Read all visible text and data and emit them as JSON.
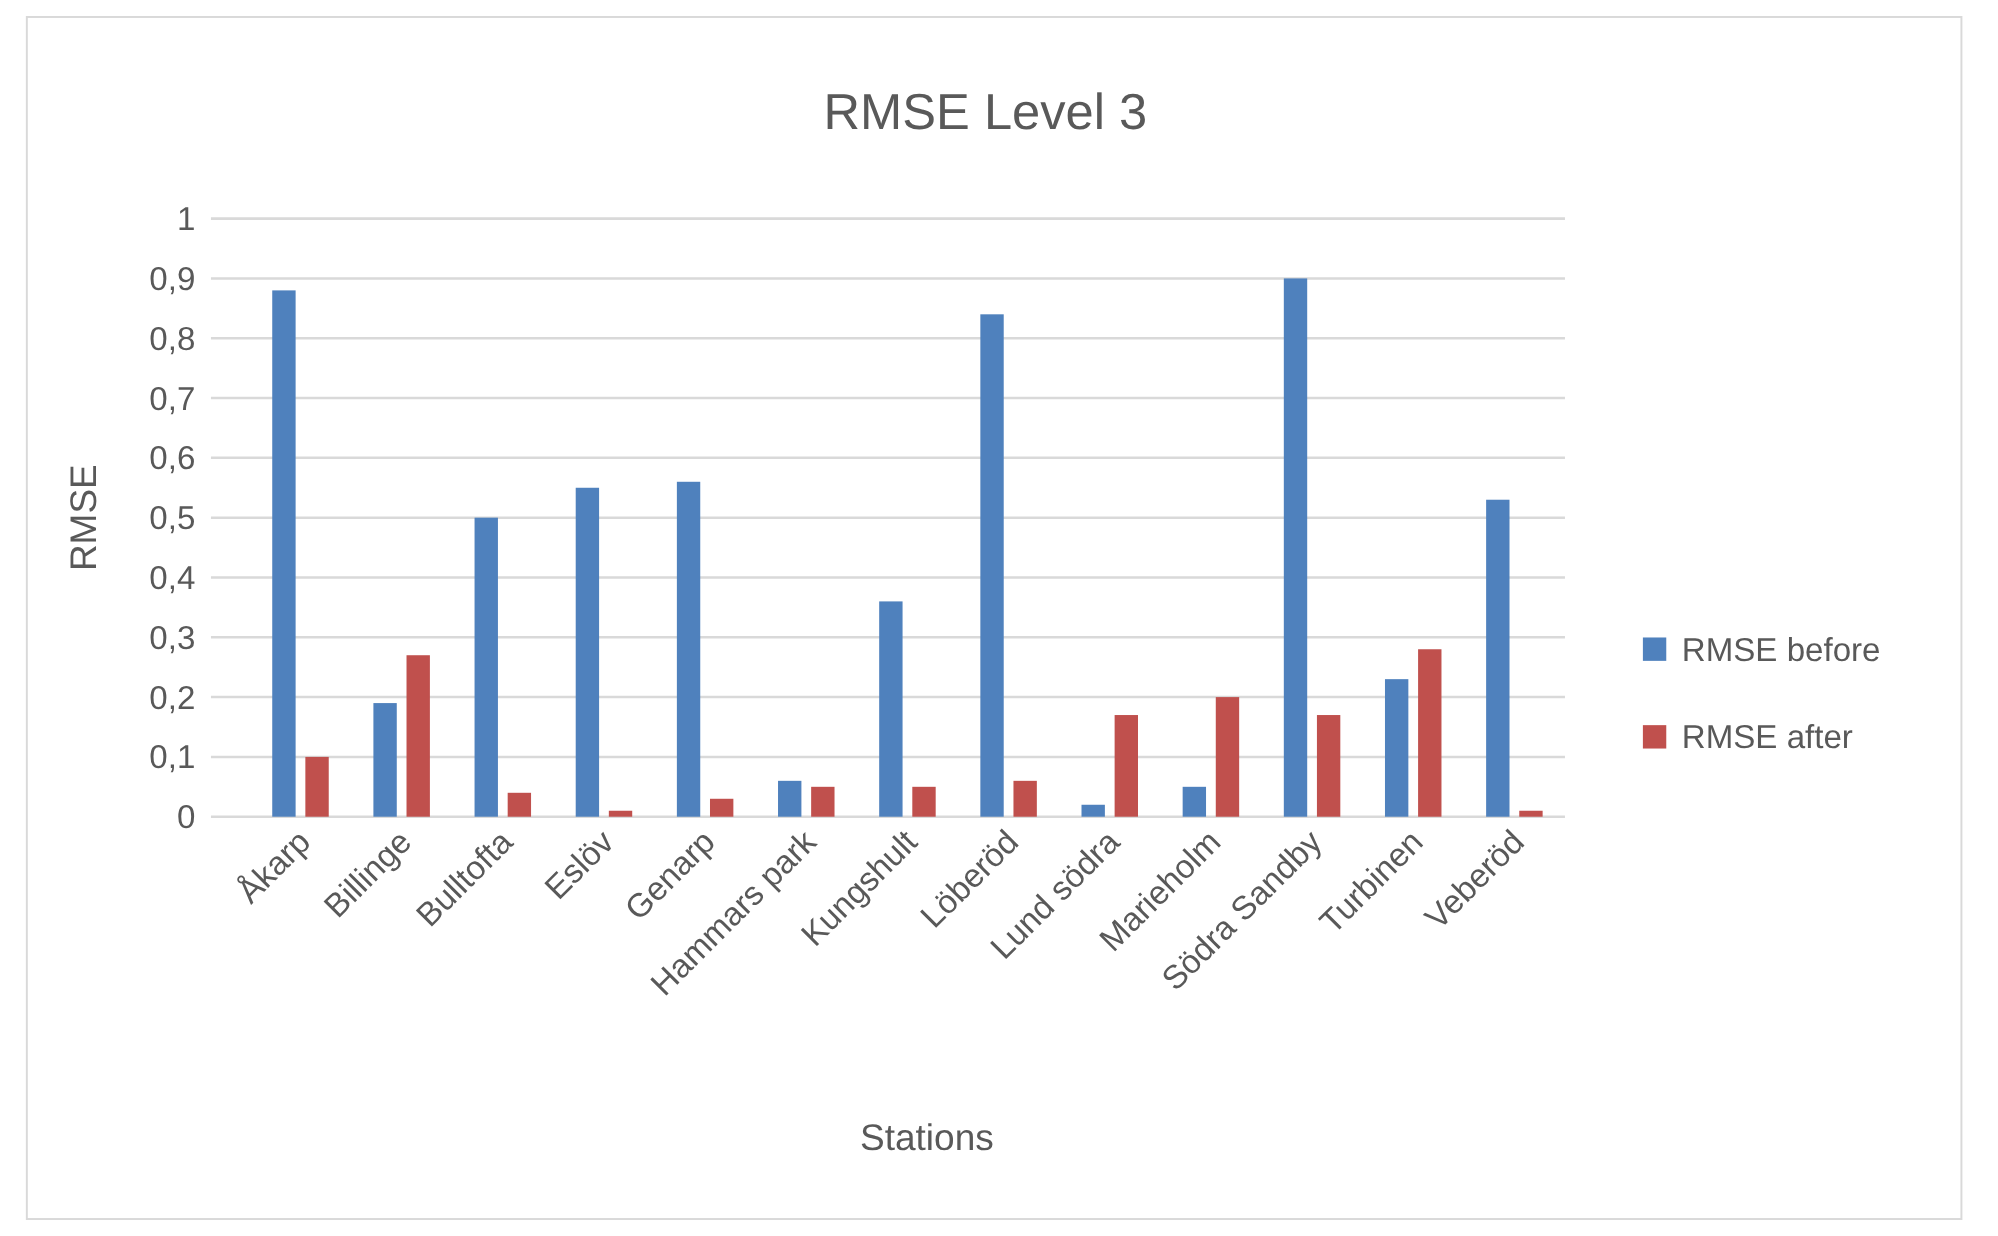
{
  "chart_data": {
    "type": "bar",
    "title": "RMSE Level  3",
    "xlabel": "Stations",
    "ylabel": "RMSE",
    "categories": [
      "Åkarp",
      "Billinge",
      "Bulltofta",
      "Eslöv",
      "Genarp",
      "Hammars park",
      "Kungshult",
      "Löberöd",
      "Lund södra",
      "Marieholm",
      "Södra Sandby",
      "Turbinen",
      "Veberöd"
    ],
    "series": [
      {
        "name": "RMSE before",
        "color": "#4f81bd",
        "values": [
          0.88,
          0.19,
          0.5,
          0.55,
          0.56,
          0.06,
          0.36,
          0.84,
          0.02,
          0.05,
          0.9,
          0.23,
          0.53
        ]
      },
      {
        "name": "RMSE after",
        "color": "#c0504d",
        "values": [
          0.1,
          0.27,
          0.04,
          0.01,
          0.03,
          0.05,
          0.05,
          0.06,
          0.17,
          0.2,
          0.17,
          0.28,
          0.01
        ]
      }
    ],
    "ylim": [
      0,
      1
    ],
    "yticks": [
      0,
      {
        "value": 0.1,
        "label": "0,1"
      },
      {
        "value": 0.2,
        "label": "0,2"
      },
      {
        "value": 0.3,
        "label": "0,3"
      },
      {
        "value": 0.4,
        "label": "0,4"
      },
      {
        "value": 0.5,
        "label": "0,5"
      },
      {
        "value": 0.6,
        "label": "0,6"
      },
      {
        "value": 0.7,
        "label": "0,7"
      },
      {
        "value": 0.8,
        "label": "0,8"
      },
      {
        "value": 0.9,
        "label": "0,9"
      },
      1
    ],
    "grid": "y",
    "legend": "right"
  }
}
